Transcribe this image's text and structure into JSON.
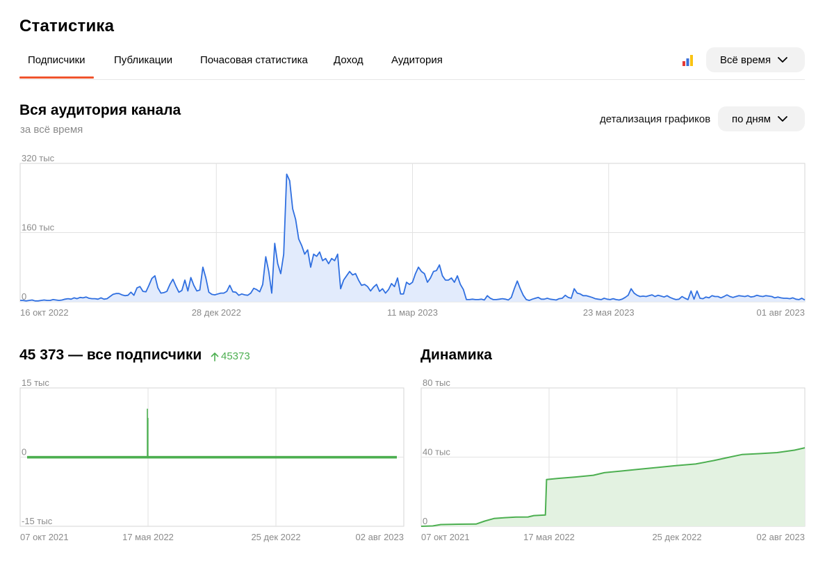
{
  "page": {
    "title": "Статистика"
  },
  "tabs": [
    {
      "label": "Подписчики",
      "active": true
    },
    {
      "label": "Публикации",
      "active": false
    },
    {
      "label": "Почасовая статистика",
      "active": false
    },
    {
      "label": "Доход",
      "active": false
    },
    {
      "label": "Аудитория",
      "active": false
    }
  ],
  "period_select": {
    "value": "Всё время"
  },
  "audience_section": {
    "title": "Вся аудитория канала",
    "subtitle": "за всё время",
    "detail_label": "детализация графиков",
    "detail_value": "по дням"
  },
  "subscribers_section": {
    "title": "45 373 — все подписчики",
    "delta": "45373"
  },
  "dynamics_section": {
    "title": "Динамика"
  },
  "colors": {
    "accent": "#f0542d",
    "line_blue": "#2f6fe0",
    "fill_blue": "#e2ebfc",
    "green": "#4caf50",
    "fill_green": "#e3f2e1"
  },
  "chart_data": [
    {
      "id": "audience",
      "type": "area",
      "title": "",
      "ylim": [
        0,
        320000
      ],
      "y_ticks": [
        0,
        160000,
        320000
      ],
      "y_tick_labels": [
        "0",
        "160 тыс",
        "320 тыс"
      ],
      "x_tick_labels": [
        "16 окт 2022",
        "28 дек 2022",
        "11 мар 2023",
        "23 мая 2023",
        "01 авг 2023"
      ],
      "x_range": [
        "2022-10-16",
        "2023-08-01"
      ],
      "grid": true,
      "series": [
        {
          "values": [
            3000,
            3000,
            2000,
            3000,
            4000,
            2000,
            2000,
            3000,
            4000,
            3000,
            3000,
            5000,
            4000,
            3000,
            4000,
            6000,
            7000,
            6000,
            9000,
            7000,
            10000,
            9000,
            11000,
            8000,
            7000,
            7000,
            6000,
            9000,
            6000,
            7000,
            12000,
            17000,
            19000,
            19000,
            16000,
            14000,
            15000,
            22000,
            15000,
            32000,
            35000,
            24000,
            23000,
            38000,
            54000,
            60000,
            32000,
            20000,
            21000,
            24000,
            40000,
            52000,
            36000,
            22000,
            26000,
            50000,
            25000,
            56000,
            38000,
            25000,
            27000,
            80000,
            55000,
            22000,
            17000,
            16000,
            18000,
            20000,
            20000,
            24000,
            38000,
            23000,
            22000,
            15000,
            18000,
            16000,
            15000,
            20000,
            31000,
            28000,
            23000,
            40000,
            104000,
            70000,
            20000,
            135000,
            88000,
            65000,
            110000,
            295000,
            280000,
            215000,
            190000,
            145000,
            130000,
            110000,
            120000,
            80000,
            110000,
            105000,
            115000,
            95000,
            100000,
            88000,
            100000,
            95000,
            110000,
            30000,
            50000,
            60000,
            70000,
            62000,
            65000,
            50000,
            38000,
            40000,
            35000,
            25000,
            34000,
            40000,
            24000,
            30000,
            20000,
            28000,
            42000,
            35000,
            55000,
            18000,
            18000,
            45000,
            40000,
            45000,
            65000,
            80000,
            70000,
            65000,
            45000,
            55000,
            70000,
            72000,
            85000,
            60000,
            50000,
            50000,
            55000,
            45000,
            60000,
            40000,
            28000,
            5000,
            5000,
            6000,
            5000,
            5000,
            6000,
            4000,
            14000,
            8000,
            5000,
            5000,
            6000,
            7000,
            6000,
            4000,
            10000,
            30000,
            48000,
            30000,
            15000,
            5000,
            3000,
            6000,
            8000,
            10000,
            6000,
            6000,
            8000,
            6000,
            5000,
            4000,
            7000,
            8000,
            15000,
            10000,
            8000,
            30000,
            20000,
            18000,
            14000,
            14000,
            12000,
            10000,
            7000,
            6000,
            5000,
            8000,
            6000,
            5000,
            7000,
            5000,
            4000,
            6000,
            10000,
            15000,
            30000,
            20000,
            15000,
            12000,
            13000,
            12000,
            14000,
            16000,
            12000,
            15000,
            13000,
            11000,
            14000,
            10000,
            7000,
            5000,
            6000,
            12000,
            8000,
            5000,
            25000,
            6000,
            25000,
            8000,
            7000,
            11000,
            9000,
            14000,
            12000,
            12000,
            9000,
            12000,
            16000,
            12000,
            10000,
            12000,
            14000,
            13000,
            12000,
            14000,
            11000,
            12000,
            15000,
            13000,
            12000,
            14000,
            13000,
            12000,
            9000,
            11000,
            9000,
            8000,
            8000,
            7000,
            9000,
            6000,
            5000,
            8000,
            4000
          ]
        }
      ]
    },
    {
      "id": "subscribers",
      "type": "bar",
      "title": "",
      "ylim": [
        -15000,
        15000
      ],
      "y_ticks": [
        -15000,
        0,
        15000
      ],
      "y_tick_labels": [
        "-15 тыс",
        "0",
        "15 тыс"
      ],
      "x_tick_labels": [
        "07 окт 2021",
        "17 мая 2022",
        "25 дек 2022",
        "02 авг 2023"
      ],
      "x_range": [
        "2021-10-07",
        "2023-08-02"
      ],
      "grid": true,
      "series": [
        {
          "baseline": 100,
          "spikes": [
            {
              "date": "2022-05-11",
              "value": 10500
            },
            {
              "date": "2022-05-12",
              "value": 8500
            }
          ]
        }
      ]
    },
    {
      "id": "dynamics",
      "type": "area",
      "title": "",
      "ylim": [
        0,
        80000
      ],
      "y_ticks": [
        0,
        40000,
        80000
      ],
      "y_tick_labels": [
        "0",
        "40 тыс",
        "80 тыс"
      ],
      "x_tick_labels": [
        "07 окт 2021",
        "17 мая 2022",
        "25 дек 2022",
        "02 авг 2023"
      ],
      "x_range": [
        "2021-10-07",
        "2023-08-02"
      ],
      "grid": true,
      "series": [
        {
          "x": [
            "2021-10-07",
            "2021-10-27",
            "2021-11-10",
            "2021-12-10",
            "2022-01-10",
            "2022-01-25",
            "2022-02-10",
            "2022-03-01",
            "2022-03-20",
            "2022-04-10",
            "2022-04-20",
            "2022-05-10",
            "2022-05-12",
            "2022-06-01",
            "2022-07-01",
            "2022-08-01",
            "2022-08-20",
            "2022-09-20",
            "2022-10-20",
            "2022-11-20",
            "2022-12-20",
            "2023-01-25",
            "2023-02-25",
            "2023-03-25",
            "2023-04-15",
            "2023-05-15",
            "2023-06-15",
            "2023-07-15",
            "2023-08-02"
          ],
          "values": [
            0,
            200,
            1000,
            1200,
            1300,
            3000,
            4500,
            5000,
            5300,
            5400,
            6200,
            6500,
            27000,
            27700,
            28500,
            29500,
            31000,
            32000,
            33000,
            34000,
            35000,
            36000,
            38000,
            40000,
            41500,
            42000,
            42600,
            44000,
            45373
          ]
        }
      ]
    }
  ]
}
